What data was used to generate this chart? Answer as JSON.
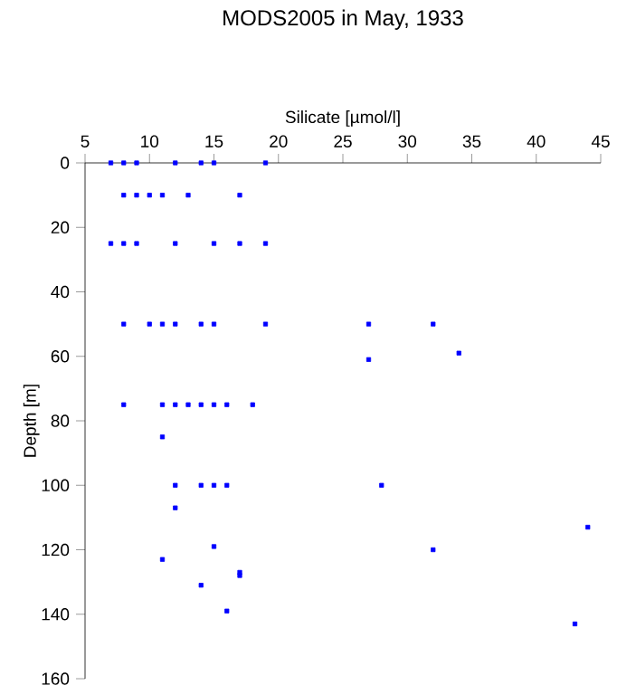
{
  "chart_data": {
    "type": "scatter",
    "title": "MODS2005 in May, 1933",
    "xlabel": "Silicate [µmol/l]",
    "ylabel": "Depth [m]",
    "x": [
      7,
      8,
      9,
      12,
      14,
      15,
      19,
      8,
      9,
      10,
      11,
      13,
      17,
      7,
      8,
      9,
      12,
      15,
      17,
      19,
      8,
      10,
      11,
      12,
      14,
      15,
      19,
      27,
      32,
      34,
      27,
      8,
      11,
      12,
      13,
      14,
      15,
      16,
      18,
      11,
      12,
      14,
      15,
      16,
      28,
      12,
      44,
      15,
      32,
      11,
      17,
      17,
      14,
      16,
      43
    ],
    "series": [
      {
        "color": "#0000ff",
        "values": [
          0,
          0,
          0,
          0,
          0,
          0,
          0,
          10,
          10,
          10,
          10,
          10,
          10,
          25,
          25,
          25,
          25,
          25,
          25,
          25,
          50,
          50,
          50,
          50,
          50,
          50,
          50,
          50,
          50,
          59,
          61,
          75,
          75,
          75,
          75,
          75,
          75,
          75,
          75,
          85,
          100,
          100,
          100,
          100,
          100,
          107,
          113,
          119,
          120,
          123,
          127,
          128,
          131,
          139,
          143
        ]
      }
    ],
    "xlim": [
      5,
      45
    ],
    "xticks": [
      5,
      10,
      15,
      20,
      25,
      30,
      35,
      40,
      45
    ],
    "ylim": [
      160,
      0
    ],
    "yticks": [
      0,
      20,
      40,
      60,
      80,
      100,
      120,
      140,
      160
    ],
    "marker": "square"
  }
}
